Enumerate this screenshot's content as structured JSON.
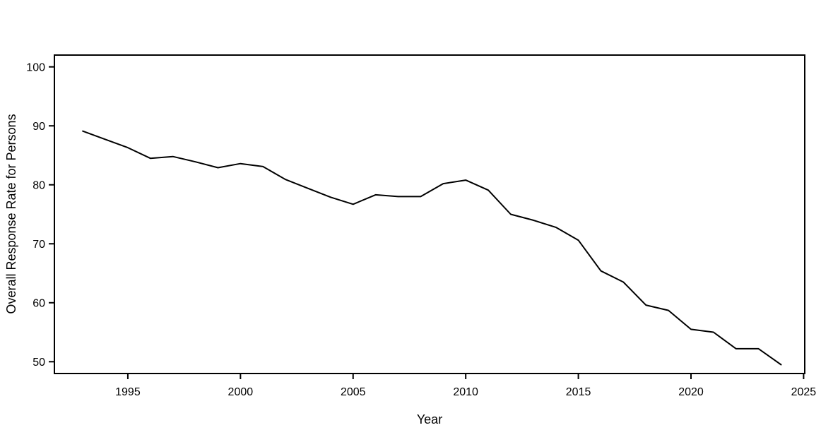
{
  "figure": {
    "xlabel": "Year",
    "ylabel": "Overall Response Rate for Persons"
  },
  "chart_data": {
    "type": "line",
    "title": "",
    "xlabel": "Year",
    "ylabel": "Overall Response Rate for Persons",
    "x": [
      1993,
      1994,
      1995,
      1996,
      1997,
      1998,
      1999,
      2000,
      2001,
      2002,
      2003,
      2004,
      2005,
      2006,
      2007,
      2008,
      2009,
      2010,
      2011,
      2012,
      2013,
      2014,
      2015,
      2016,
      2017,
      2018,
      2019,
      2020,
      2021,
      2022,
      2023,
      2024
    ],
    "values": [
      89.1,
      87.7,
      86.3,
      84.5,
      84.8,
      83.9,
      82.9,
      83.6,
      83.1,
      80.9,
      79.4,
      77.9,
      76.7,
      78.3,
      78.0,
      78.0,
      80.2,
      80.8,
      79.1,
      75.0,
      74.0,
      72.8,
      70.6,
      65.4,
      63.5,
      59.6,
      58.7,
      55.5,
      55.0,
      52.2,
      52.2,
      49.5
    ],
    "x_ticks": [
      1995,
      2000,
      2005,
      2010,
      2015,
      2020,
      2025
    ],
    "y_ticks": [
      50,
      60,
      70,
      80,
      90,
      100
    ],
    "xlim": [
      1991.74,
      2025.05
    ],
    "ylim": [
      48.0,
      102.0
    ],
    "line_color": "#000000",
    "axis_color": "#000000",
    "background": "#ffffff",
    "grid": false,
    "legend": "none"
  }
}
